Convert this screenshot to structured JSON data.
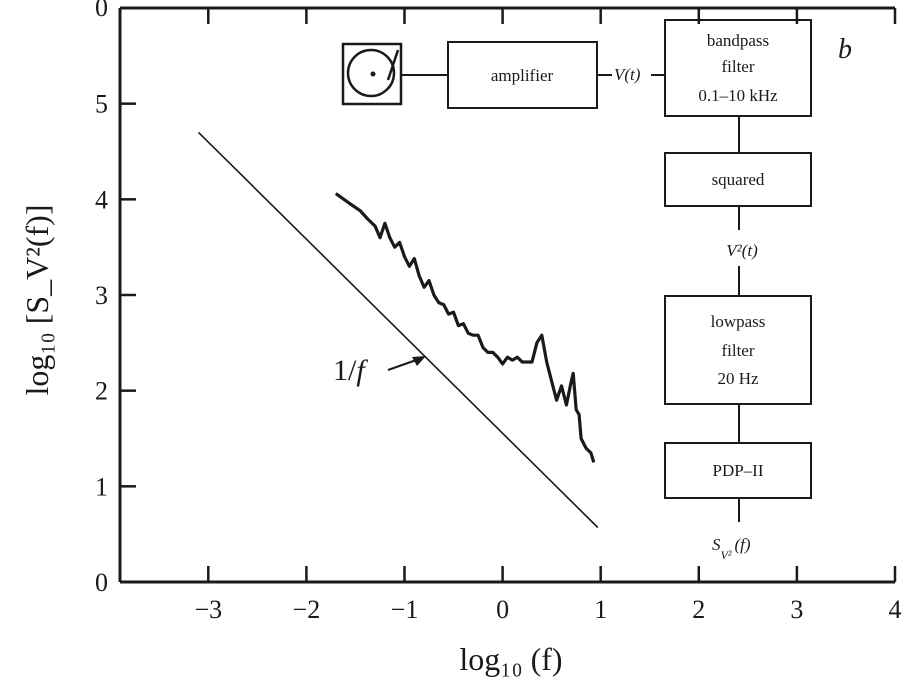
{
  "chart_data": {
    "type": "line",
    "panel_label": "b",
    "xlabel": "log₁₀ (f)",
    "ylabel": "log₁₀ [S_V²(f)]",
    "xlim": [
      -3.9,
      4
    ],
    "ylim": [
      0,
      6
    ],
    "x_ticks": [
      -3,
      -2,
      -1,
      0,
      1,
      2,
      3,
      4
    ],
    "x_tick_labels": [
      "−3",
      "−2",
      "−1",
      "0",
      "1",
      "2",
      "3",
      "4"
    ],
    "y_ticks": [
      0,
      1,
      2,
      3,
      4,
      5
    ],
    "y_tick_labels": [
      "0",
      "1",
      "2",
      "3",
      "4",
      "5"
    ],
    "grid": false,
    "series": [
      {
        "style": "thin",
        "x": [
          -3.1,
          0.97
        ],
        "y": [
          4.7,
          0.57
        ]
      },
      {
        "style": "bold",
        "x": [
          -1.7,
          -1.55,
          -1.45,
          -1.38,
          -1.3,
          -1.25,
          -1.2,
          -1.15,
          -1.1,
          -1.05,
          -1.0,
          -0.95,
          -0.9,
          -0.85,
          -0.8,
          -0.75,
          -0.7,
          -0.65,
          -0.6,
          -0.55,
          -0.5,
          -0.45,
          -0.4,
          -0.35,
          -0.3,
          -0.25,
          -0.2,
          -0.15,
          -0.1,
          -0.05,
          0.0,
          0.05,
          0.1,
          0.15,
          0.2,
          0.25,
          0.3,
          0.35,
          0.4,
          0.45,
          0.5,
          0.55,
          0.6,
          0.65,
          0.7,
          0.72,
          0.75,
          0.78,
          0.8,
          0.85,
          0.9,
          0.93
        ],
        "y": [
          4.06,
          3.95,
          3.88,
          3.8,
          3.72,
          3.6,
          3.75,
          3.6,
          3.5,
          3.55,
          3.4,
          3.3,
          3.38,
          3.2,
          3.08,
          3.15,
          3.0,
          2.92,
          2.9,
          2.8,
          2.82,
          2.68,
          2.7,
          2.6,
          2.58,
          2.58,
          2.45,
          2.4,
          2.4,
          2.35,
          2.28,
          2.35,
          2.32,
          2.35,
          2.3,
          2.3,
          2.3,
          2.5,
          2.58,
          2.3,
          2.1,
          1.9,
          2.05,
          1.85,
          2.1,
          2.18,
          1.8,
          1.75,
          1.5,
          1.4,
          1.35,
          1.25
        ]
      }
    ],
    "annotations": [
      {
        "text": "1/f",
        "x": -1.8,
        "y": 2.3,
        "arrow_to": [
          -0.85,
          2.35
        ]
      }
    ]
  },
  "block_diagram": {
    "amplifier": "amplifier",
    "v_t": "V(t)",
    "bandpass": [
      "bandpass",
      "filter",
      "0.1–10 kHz"
    ],
    "squared": "squared",
    "v2_t": "V²(t)",
    "lowpass": [
      "lowpass",
      "filter",
      "20 Hz"
    ],
    "pdp": "PDP–II",
    "output": "S",
    "output_sub": "V²",
    "output_arg": "(f)"
  }
}
